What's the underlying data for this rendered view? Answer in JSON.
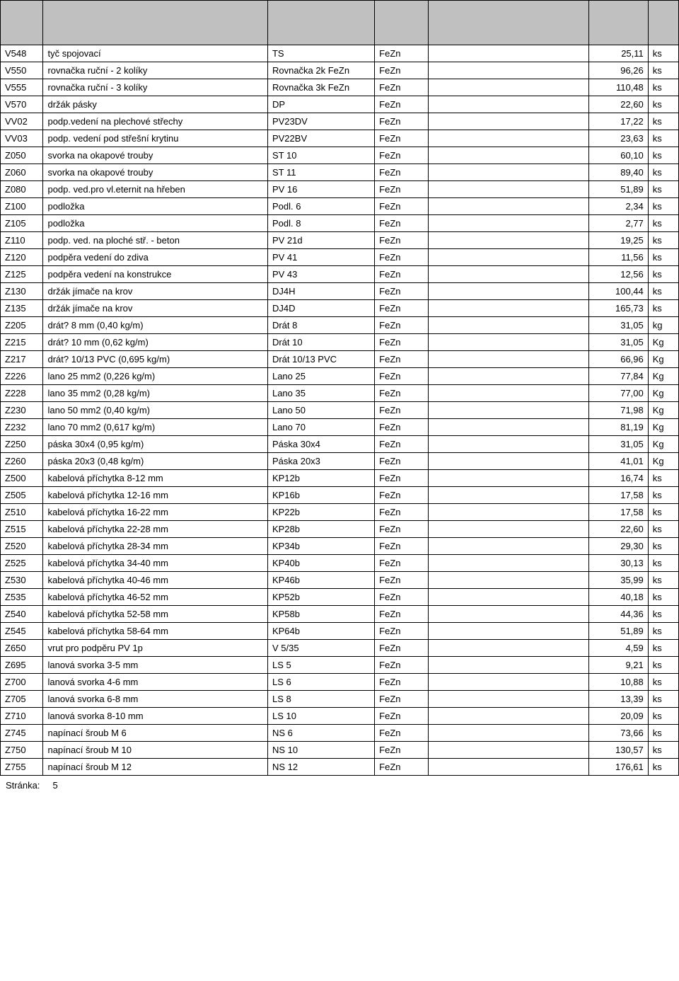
{
  "table": {
    "header_bg": "#c0c0c0",
    "border_color": "#000000",
    "columns": [
      "code",
      "desc",
      "short",
      "mat",
      "blank",
      "price",
      "unit"
    ],
    "rows": [
      [
        "V548",
        "tyč spojovací",
        "TS",
        "FeZn",
        "",
        "25,11",
        "ks"
      ],
      [
        "V550",
        "rovnačka ruční - 2 kolíky",
        "Rovnačka 2k FeZn",
        "FeZn",
        "",
        "96,26",
        "ks"
      ],
      [
        "V555",
        "rovnačka ruční - 3 kolíky",
        "Rovnačka 3k FeZn",
        "FeZn",
        "",
        "110,48",
        "ks"
      ],
      [
        "V570",
        "držák pásky",
        "DP",
        "FeZn",
        "",
        "22,60",
        "ks"
      ],
      [
        "VV02",
        "podp.vedení na plechové střechy",
        "PV23DV",
        "FeZn",
        "",
        "17,22",
        "ks"
      ],
      [
        "VV03",
        "podp. vedení pod střešní krytinu",
        "PV22BV",
        "FeZn",
        "",
        "23,63",
        "ks"
      ],
      [
        "Z050",
        "svorka na okapové trouby",
        "ST 10",
        "FeZn",
        "",
        "60,10",
        "ks"
      ],
      [
        "Z060",
        "svorka na okapové trouby",
        "ST 11",
        "FeZn",
        "",
        "89,40",
        "ks"
      ],
      [
        "Z080",
        "podp. ved.pro vl.eternit na hřeben",
        "PV 16",
        "FeZn",
        "",
        "51,89",
        "ks"
      ],
      [
        "Z100",
        "podložka",
        "Podl. 6",
        "FeZn",
        "",
        "2,34",
        "ks"
      ],
      [
        "Z105",
        "podložka",
        "Podl. 8",
        "FeZn",
        "",
        "2,77",
        "ks"
      ],
      [
        "Z110",
        "podp. ved. na ploché stř. - beton",
        "PV 21d",
        "FeZn",
        "",
        "19,25",
        "ks"
      ],
      [
        "Z120",
        "podpěra vedení do zdiva",
        "PV 41",
        "FeZn",
        "",
        "11,56",
        "ks"
      ],
      [
        "Z125",
        "podpěra vedení na konstrukce",
        "PV 43",
        "FeZn",
        "",
        "12,56",
        "ks"
      ],
      [
        "Z130",
        "držák jímače na krov",
        "DJ4H",
        "FeZn",
        "",
        "100,44",
        "ks"
      ],
      [
        "Z135",
        "držák jímače na krov",
        "DJ4D",
        "FeZn",
        "",
        "165,73",
        "ks"
      ],
      [
        "Z205",
        "drát? 8 mm (0,40 kg/m)",
        "Drát 8",
        "FeZn",
        "",
        "31,05",
        "kg"
      ],
      [
        "Z215",
        "drát? 10 mm (0,62 kg/m)",
        "Drát 10",
        "FeZn",
        "",
        "31,05",
        "Kg"
      ],
      [
        "Z217",
        "drát? 10/13 PVC (0,695 kg/m)",
        "Drát 10/13 PVC",
        "FeZn",
        "",
        "66,96",
        "Kg"
      ],
      [
        "Z226",
        "lano 25 mm2 (0,226 kg/m)",
        "Lano 25",
        "FeZn",
        "",
        "77,84",
        "Kg"
      ],
      [
        "Z228",
        "lano 35 mm2 (0,28 kg/m)",
        "Lano 35",
        "FeZn",
        "",
        "77,00",
        "Kg"
      ],
      [
        "Z230",
        "lano 50 mm2 (0,40 kg/m)",
        "Lano 50",
        "FeZn",
        "",
        "71,98",
        "Kg"
      ],
      [
        "Z232",
        "lano 70 mm2 (0,617 kg/m)",
        "Lano 70",
        "FeZn",
        "",
        "81,19",
        "Kg"
      ],
      [
        "Z250",
        "páska 30x4 (0,95 kg/m)",
        "Páska 30x4",
        "FeZn",
        "",
        "31,05",
        "Kg"
      ],
      [
        "Z260",
        "páska 20x3 (0,48 kg/m)",
        "Páska 20x3",
        "FeZn",
        "",
        "41,01",
        "Kg"
      ],
      [
        "Z500",
        "kabelová příchytka    8-12 mm",
        "KP12b",
        "FeZn",
        "",
        "16,74",
        "ks"
      ],
      [
        "Z505",
        "kabelová příchytka  12-16 mm",
        "KP16b",
        "FeZn",
        "",
        "17,58",
        "ks"
      ],
      [
        "Z510",
        "kabelová příchytka  16-22 mm",
        "KP22b",
        "FeZn",
        "",
        "17,58",
        "ks"
      ],
      [
        "Z515",
        "kabelová příchytka  22-28 mm",
        "KP28b",
        "FeZn",
        "",
        "22,60",
        "ks"
      ],
      [
        "Z520",
        "kabelová příchytka  28-34 mm",
        "KP34b",
        "FeZn",
        "",
        "29,30",
        "ks"
      ],
      [
        "Z525",
        "kabelová příchytka   34-40 mm",
        "KP40b",
        "FeZn",
        "",
        "30,13",
        "ks"
      ],
      [
        "Z530",
        "kabelová příchytka   40-46 mm",
        "KP46b",
        "FeZn",
        "",
        "35,99",
        "ks"
      ],
      [
        "Z535",
        "kabelová příchytka   46-52 mm",
        "KP52b",
        "FeZn",
        "",
        "40,18",
        "ks"
      ],
      [
        "Z540",
        "kabelová příchytka   52-58 mm",
        "KP58b",
        "FeZn",
        "",
        "44,36",
        "ks"
      ],
      [
        "Z545",
        "kabelová příchytka   58-64 mm",
        "KP64b",
        "FeZn",
        "",
        "51,89",
        "ks"
      ],
      [
        "Z650",
        "vrut pro podpěru PV 1p",
        "V 5/35",
        "FeZn",
        "",
        "4,59",
        "ks"
      ],
      [
        "Z695",
        "lanová svorka    3-5 mm",
        "LS 5",
        "FeZn",
        "",
        "9,21",
        "ks"
      ],
      [
        "Z700",
        "lanová svorka    4-6 mm",
        "LS 6",
        "FeZn",
        "",
        "10,88",
        "ks"
      ],
      [
        "Z705",
        "lanová svorka    6-8 mm",
        "LS 8",
        "FeZn",
        "",
        "13,39",
        "ks"
      ],
      [
        "Z710",
        "lanová svorka   8-10 mm",
        "LS 10",
        "FeZn",
        "",
        "20,09",
        "ks"
      ],
      [
        "Z745",
        "napínací šroub  M 6",
        "NS 6",
        "FeZn",
        "",
        "73,66",
        "ks"
      ],
      [
        "Z750",
        "napínací šroub  M 10",
        "NS 10",
        "FeZn",
        "",
        "130,57",
        "ks"
      ],
      [
        "Z755",
        "napínací šroub  M 12",
        "NS 12",
        "FeZn",
        "",
        "176,61",
        "ks"
      ]
    ]
  },
  "footer": {
    "page_label": "Stránka:",
    "page_number": "5"
  }
}
